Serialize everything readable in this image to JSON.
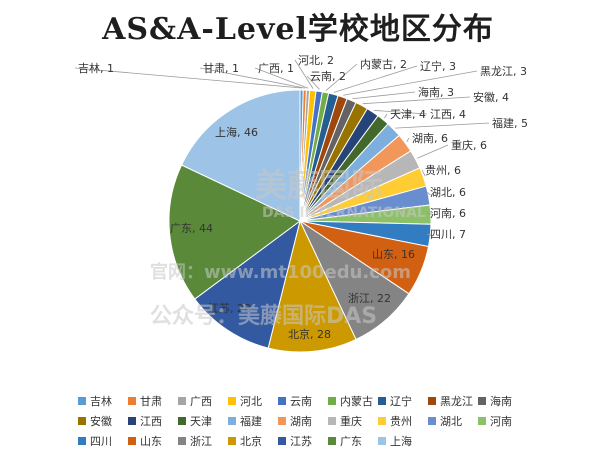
{
  "chart_data": {
    "type": "pie",
    "title": "AS&A-Level学校地区分布",
    "categories": [
      "吉林",
      "甘肃",
      "广西",
      "河北",
      "云南",
      "内蒙古",
      "辽宁",
      "黑龙江",
      "海南",
      "安徽",
      "江西",
      "天津",
      "福建",
      "湖南",
      "重庆",
      "贵州",
      "湖北",
      "河南",
      "四川",
      "山东",
      "浙江",
      "北京",
      "江苏",
      "广东",
      "上海"
    ],
    "values": [
      1,
      1,
      1,
      2,
      2,
      2,
      3,
      3,
      3,
      4,
      4,
      4,
      5,
      6,
      6,
      6,
      6,
      6,
      7,
      16,
      22,
      28,
      28,
      44,
      46
    ],
    "colors": [
      "#5b9bd5",
      "#ed7d31",
      "#a5a5a5",
      "#ffc000",
      "#4472c4",
      "#70ad47",
      "#255e91",
      "#9e480e",
      "#636363",
      "#997300",
      "#264478",
      "#43682b",
      "#7cafdd",
      "#f1975a",
      "#b7b7b7",
      "#ffcd33",
      "#698ed0",
      "#8cc168",
      "#327dc2",
      "#d26012",
      "#848484",
      "#cc9a00",
      "#335aa1",
      "#5a8a39",
      "#9dc3e6"
    ],
    "legend_position": "bottom",
    "data_label_format": "{name}, {value}"
  },
  "watermark": {
    "line1": "美藤国际",
    "line2": "DAS INTERNATIONAL",
    "line3": "官网：www.mt100edu.com",
    "line4": "公众号：美藤国际DAS"
  }
}
